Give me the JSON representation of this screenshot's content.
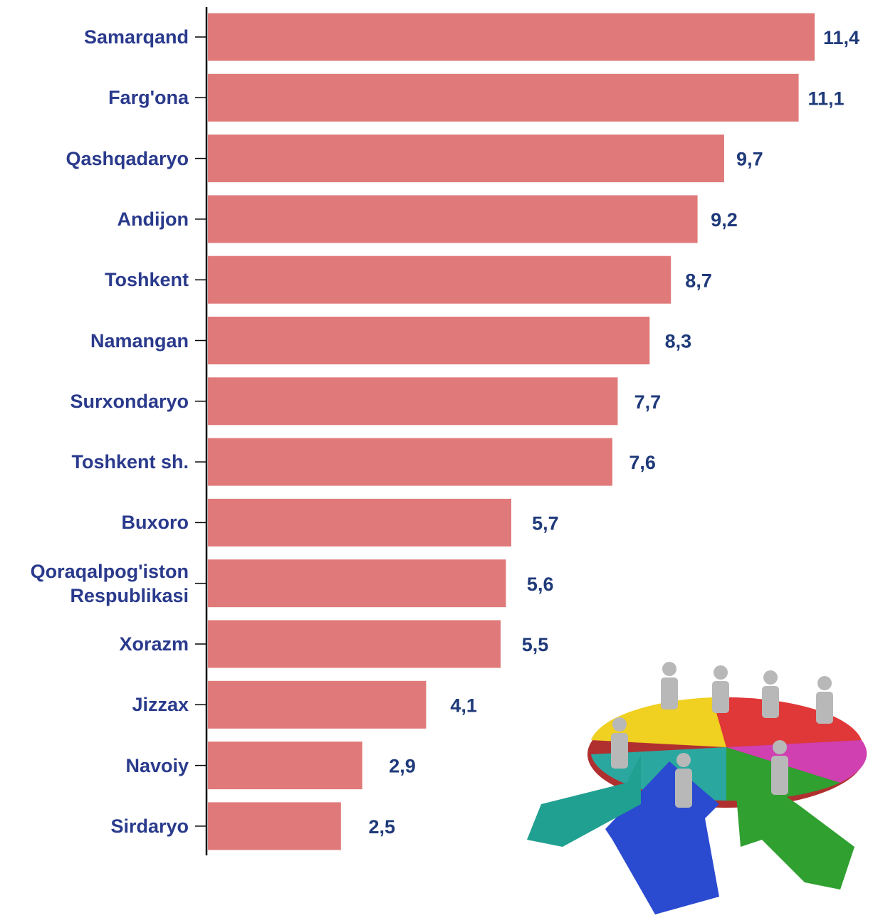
{
  "chart_data": {
    "type": "bar",
    "orientation": "horizontal",
    "color": "#e07a7a",
    "categories": [
      "Samarqand",
      "Farg'ona",
      "Qashqadaryo",
      "Andijon",
      "Toshkent",
      "Namangan",
      "Surxondaryo",
      "Toshkent sh.",
      "Buxoro",
      "Qoraqalpog'iston\nRespublikasi",
      "Xorazm",
      "Jizzax",
      "Navoiy",
      "Sirdaryo"
    ],
    "values": [
      11.4,
      11.1,
      9.7,
      9.2,
      8.7,
      8.3,
      7.7,
      7.6,
      5.7,
      5.6,
      5.5,
      4.1,
      2.9,
      2.5
    ],
    "value_labels": [
      "11,4",
      "11,1",
      "9,7",
      "9,2",
      "8,7",
      "8,3",
      "7,7",
      "7,6",
      "5,7",
      "5,6",
      "5,5",
      "4,1",
      "2,9",
      "2,5"
    ]
  }
}
